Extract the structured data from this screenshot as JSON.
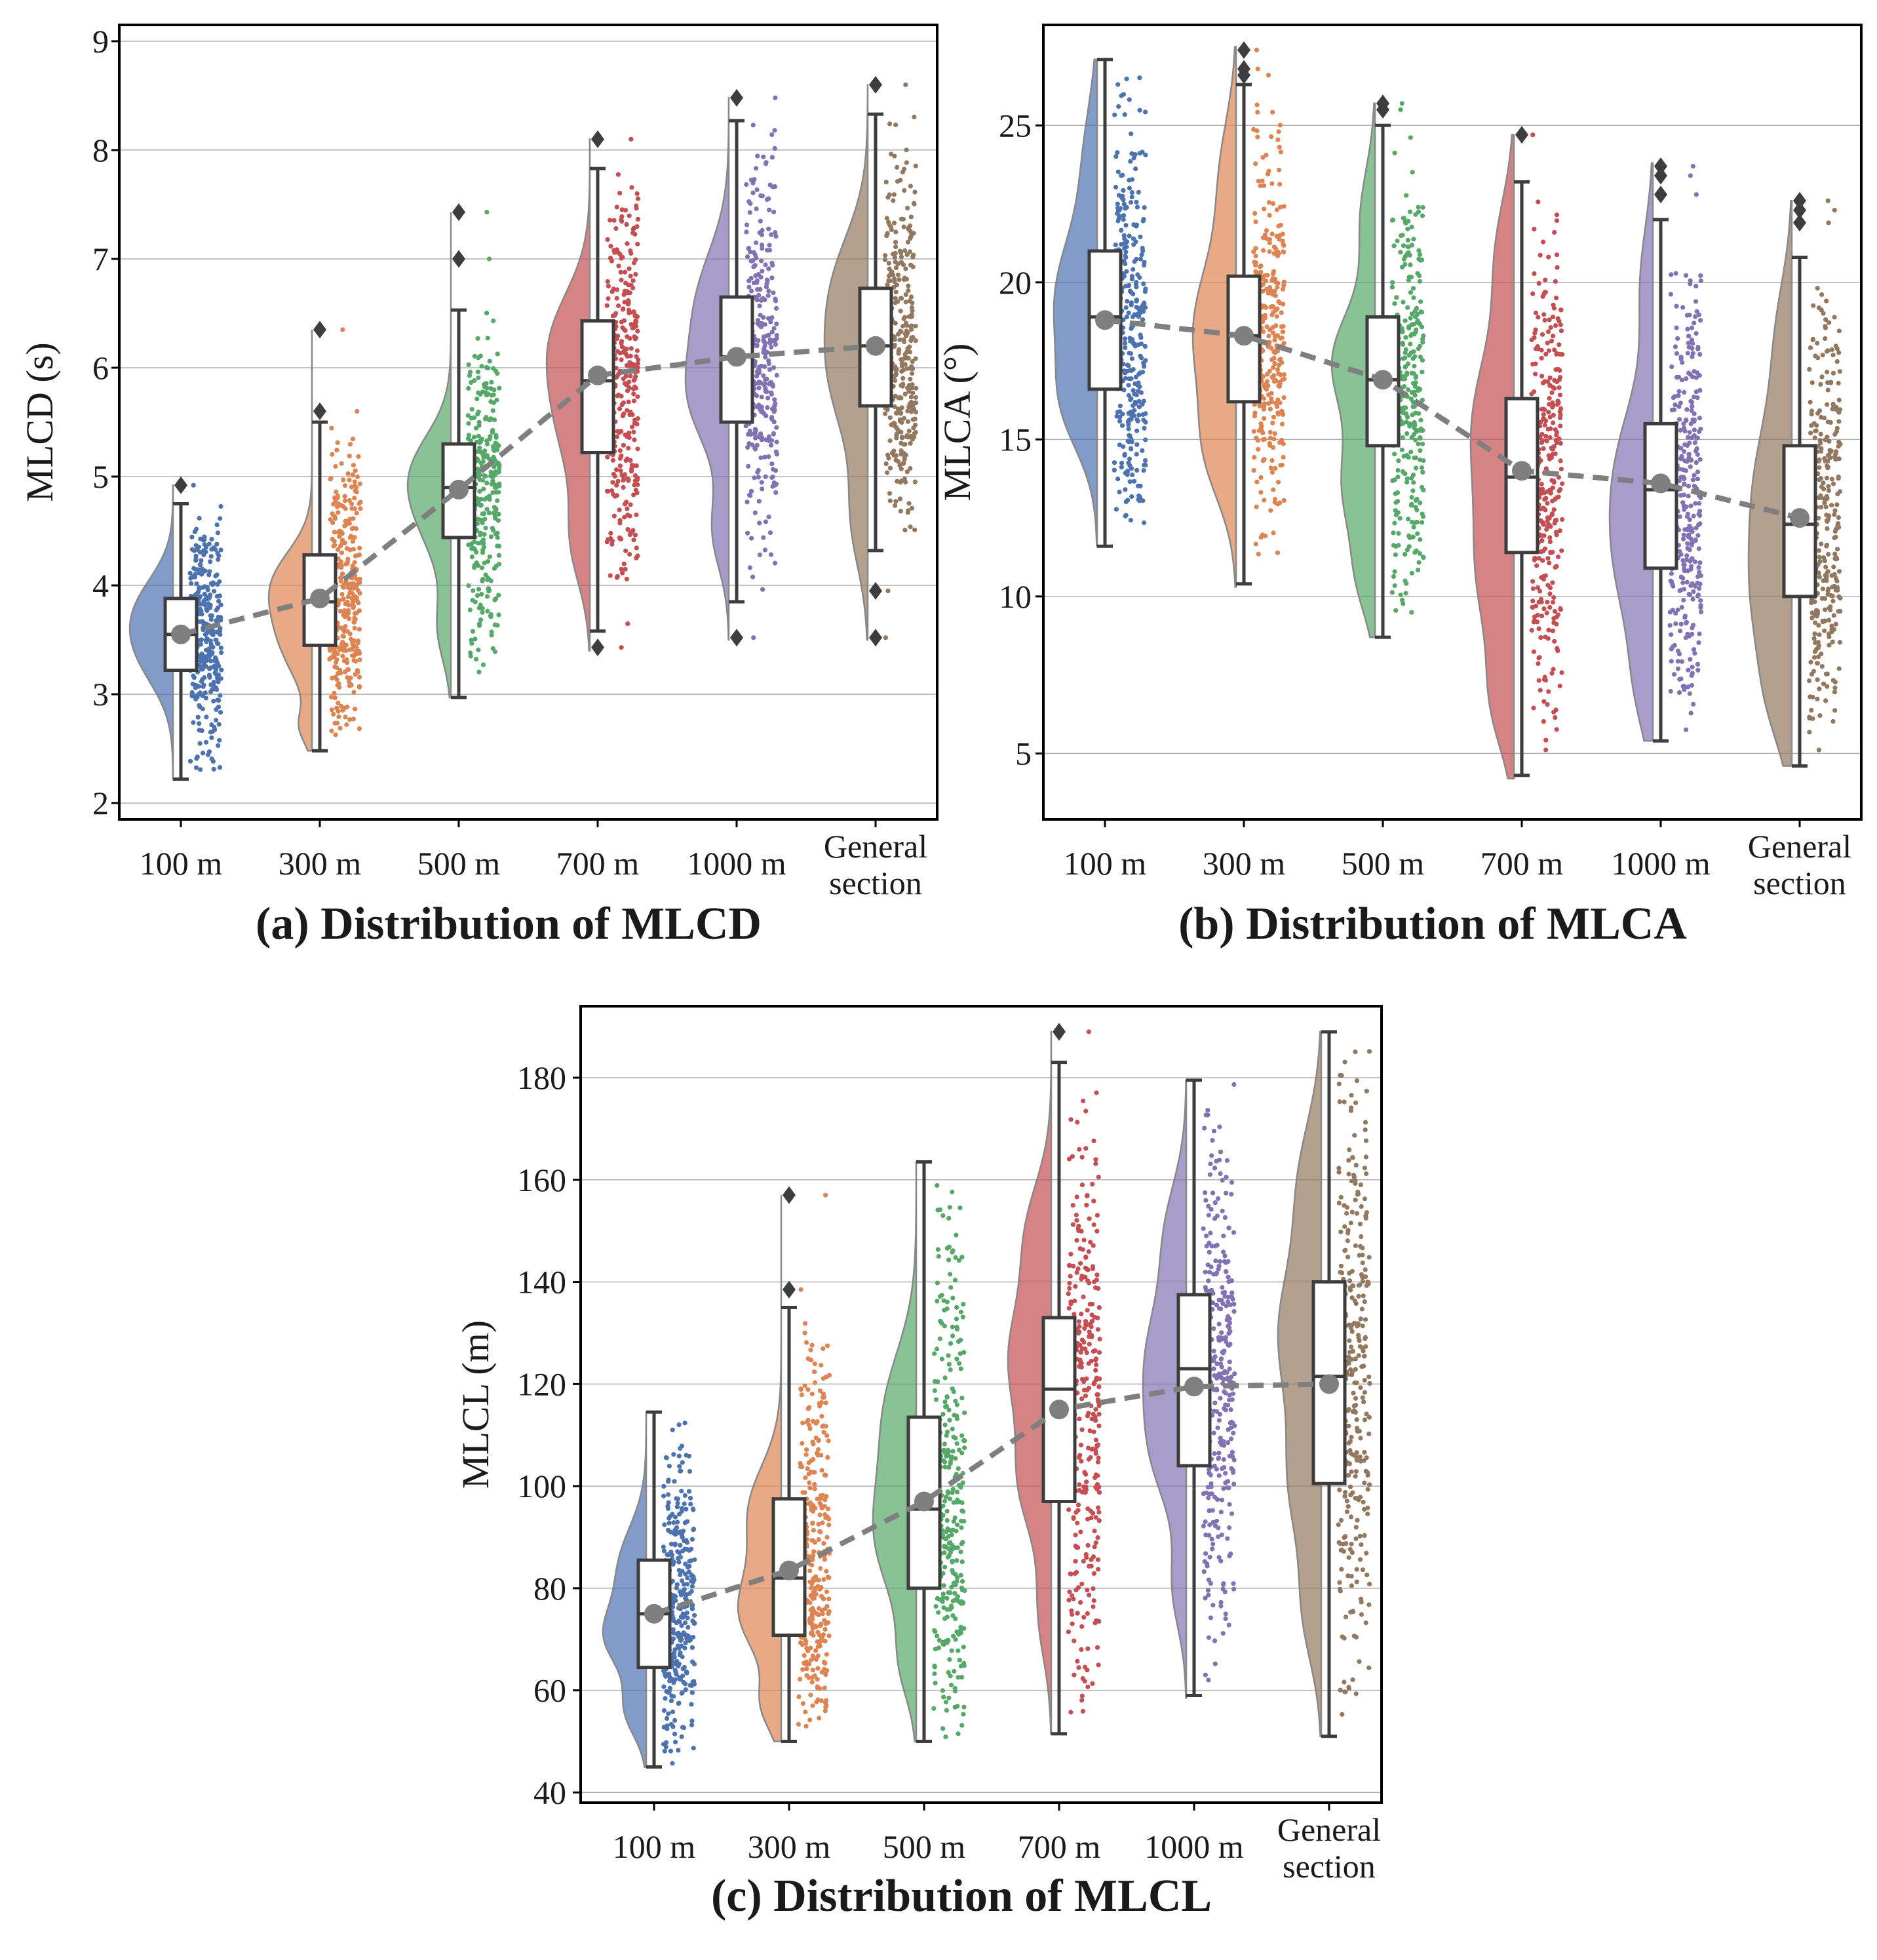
{
  "colors": {
    "palette": [
      "#4c72b0",
      "#dd8452",
      "#55a868",
      "#c44e52",
      "#8172b3",
      "#937860"
    ],
    "box_edge": "#3d3d3d",
    "mean_line": "#7f7f7f",
    "grid": "#b0b0b0"
  },
  "chart_data": [
    {
      "type": "raincloud",
      "caption": "(a) Distribution of MLCD",
      "ylabel": "MLCD (s)",
      "ylim": [
        1.85,
        9.15
      ],
      "yticks": [
        2,
        3,
        4,
        5,
        6,
        7,
        8,
        9
      ],
      "categories": [
        "100 m",
        "300 m",
        "500 m",
        "700 m",
        "1000 m",
        [
          "General",
          "section"
        ]
      ],
      "groups": [
        {
          "min": 2.22,
          "q1": 3.22,
          "median": 3.55,
          "q3": 3.88,
          "max": 4.75,
          "mean": 3.55,
          "outliers": [
            4.92
          ],
          "lo": 2.22,
          "hi": 4.92,
          "peaks": [
            [
              3.4,
              0.34,
              1.0
            ],
            [
              3.85,
              0.3,
              0.75
            ]
          ]
        },
        {
          "min": 2.48,
          "q1": 3.45,
          "median": 3.85,
          "q3": 4.28,
          "max": 5.5,
          "mean": 3.88,
          "outliers": [
            5.6,
            6.35
          ],
          "lo": 2.48,
          "hi": 6.35,
          "peaks": [
            [
              3.5,
              0.35,
              0.9
            ],
            [
              4.05,
              0.3,
              1.0
            ],
            [
              2.7,
              0.15,
              0.35
            ]
          ]
        },
        {
          "min": 2.97,
          "q1": 4.44,
          "median": 4.9,
          "q3": 5.3,
          "max": 6.53,
          "mean": 4.88,
          "outliers": [
            7.0,
            7.43
          ],
          "lo": 2.97,
          "hi": 7.43,
          "peaks": [
            [
              4.6,
              0.4,
              0.9
            ],
            [
              5.1,
              0.35,
              1.0
            ],
            [
              3.6,
              0.3,
              0.45
            ]
          ]
        },
        {
          "min": 3.58,
          "q1": 5.22,
          "median": 5.88,
          "q3": 6.43,
          "max": 7.83,
          "mean": 5.93,
          "outliers": [
            3.43,
            8.1
          ],
          "lo": 3.4,
          "hi": 8.1,
          "peaks": [
            [
              5.5,
              0.5,
              0.9
            ],
            [
              6.3,
              0.45,
              1.0
            ],
            [
              4.4,
              0.4,
              0.55
            ]
          ]
        },
        {
          "min": 3.85,
          "q1": 5.5,
          "median": 6.1,
          "q3": 6.65,
          "max": 8.27,
          "mean": 6.1,
          "outliers": [
            3.52,
            8.48
          ],
          "lo": 3.5,
          "hi": 8.48,
          "peaks": [
            [
              5.7,
              0.45,
              1.0
            ],
            [
              6.6,
              0.5,
              0.85
            ],
            [
              4.5,
              0.35,
              0.45
            ]
          ]
        },
        {
          "min": 4.32,
          "q1": 5.65,
          "median": 6.2,
          "q3": 6.73,
          "max": 8.33,
          "mean": 6.2,
          "outliers": [
            3.52,
            3.95,
            8.6
          ],
          "lo": 3.5,
          "hi": 8.6,
          "peaks": [
            [
              5.9,
              0.55,
              1.0
            ],
            [
              6.8,
              0.5,
              0.8
            ],
            [
              4.6,
              0.45,
              0.45
            ]
          ]
        }
      ]
    },
    {
      "type": "raincloud",
      "caption": "(b) Distribution of MLCA",
      "ylabel": "MLCA (°)",
      "ylim": [
        2.9,
        28.2
      ],
      "yticks": [
        5,
        10,
        15,
        20,
        25
      ],
      "categories": [
        "100 m",
        "300 m",
        "500 m",
        "700 m",
        "1000 m",
        [
          "General",
          "section"
        ]
      ],
      "groups": [
        {
          "min": 11.6,
          "q1": 16.6,
          "median": 18.9,
          "q3": 21.0,
          "max": 27.1,
          "mean": 18.8,
          "outliers": [],
          "lo": 11.6,
          "hi": 27.1,
          "peaks": [
            [
              19.5,
              2.0,
              1.0
            ],
            [
              16.0,
              1.5,
              0.7
            ],
            [
              24.0,
              1.8,
              0.3
            ]
          ]
        },
        {
          "min": 10.4,
          "q1": 16.2,
          "median": 18.3,
          "q3": 20.2,
          "max": 26.3,
          "mean": 18.3,
          "outliers": [
            26.6,
            26.8,
            27.4
          ],
          "lo": 10.3,
          "hi": 27.5,
          "peaks": [
            [
              18.5,
              2.2,
              1.0
            ],
            [
              14.5,
              1.6,
              0.6
            ],
            [
              23.5,
              1.8,
              0.35
            ]
          ]
        },
        {
          "min": 8.7,
          "q1": 14.8,
          "median": 16.9,
          "q3": 18.9,
          "max": 25.0,
          "mean": 16.9,
          "outliers": [
            25.5,
            25.7
          ],
          "lo": 8.7,
          "hi": 25.7,
          "peaks": [
            [
              17.5,
              1.6,
              1.0
            ],
            [
              13.5,
              1.6,
              0.75
            ],
            [
              10.5,
              1.2,
              0.35
            ],
            [
              22.0,
              1.6,
              0.35
            ]
          ]
        },
        {
          "min": 4.3,
          "q1": 11.4,
          "median": 13.8,
          "q3": 16.3,
          "max": 23.2,
          "mean": 14.0,
          "outliers": [
            24.7
          ],
          "lo": 4.2,
          "hi": 24.7,
          "peaks": [
            [
              15.5,
              2.5,
              1.0
            ],
            [
              10.5,
              2.2,
              0.8
            ],
            [
              6.5,
              1.5,
              0.45
            ],
            [
              21.0,
              1.8,
              0.4
            ]
          ]
        },
        {
          "min": 5.4,
          "q1": 10.9,
          "median": 13.4,
          "q3": 15.5,
          "max": 22.0,
          "mean": 13.6,
          "outliers": [
            22.8,
            23.4,
            23.7
          ],
          "lo": 5.4,
          "hi": 23.8,
          "peaks": [
            [
              14.0,
              2.3,
              1.0
            ],
            [
              10.5,
              2.0,
              0.75
            ],
            [
              7.0,
              1.5,
              0.4
            ],
            [
              20.0,
              1.8,
              0.35
            ]
          ]
        },
        {
          "min": 4.6,
          "q1": 10.0,
          "median": 12.3,
          "q3": 14.8,
          "max": 20.8,
          "mean": 12.5,
          "outliers": [
            21.9,
            22.3,
            22.6
          ],
          "lo": 4.6,
          "hi": 22.6,
          "peaks": [
            [
              13.5,
              2.5,
              1.0
            ],
            [
              9.5,
              2.0,
              0.8
            ],
            [
              6.5,
              1.5,
              0.45
            ],
            [
              18.5,
              1.8,
              0.35
            ]
          ]
        }
      ]
    },
    {
      "type": "raincloud",
      "caption": "(c) Distribution of MLCL",
      "ylabel": "MLCL (m)",
      "ylim": [
        38,
        194
      ],
      "yticks": [
        40,
        60,
        80,
        100,
        120,
        140,
        160,
        180
      ],
      "categories": [
        "100 m",
        "300 m",
        "500 m",
        "700 m",
        "1000 m",
        [
          "General",
          "section"
        ]
      ],
      "groups": [
        {
          "min": 45,
          "q1": 64.5,
          "median": 75,
          "q3": 85.5,
          "max": 114.5,
          "mean": 75,
          "outliers": [],
          "lo": 45,
          "hi": 114.5,
          "peaks": [
            [
              70,
              6,
              1.0
            ],
            [
              84,
              8,
              0.75
            ],
            [
              56,
              5,
              0.55
            ]
          ]
        },
        {
          "min": 50,
          "q1": 70.8,
          "median": 82,
          "q3": 97.5,
          "max": 135,
          "mean": 83.5,
          "outliers": [
            138.5,
            157
          ],
          "lo": 50,
          "hi": 157,
          "peaks": [
            [
              75,
              8,
              1.0
            ],
            [
              95,
              9,
              0.8
            ],
            [
              57,
              5,
              0.45
            ]
          ]
        },
        {
          "min": 50,
          "q1": 80,
          "median": 95.5,
          "q3": 113.5,
          "max": 163.5,
          "mean": 97,
          "outliers": [],
          "lo": 50,
          "hi": 163.5,
          "peaks": [
            [
              90,
              12,
              1.0
            ],
            [
              115,
              12,
              0.75
            ],
            [
              65,
              7,
              0.35
            ]
          ]
        },
        {
          "min": 51.5,
          "q1": 97,
          "median": 119,
          "q3": 133,
          "max": 183,
          "mean": 115,
          "outliers": [
            189
          ],
          "lo": 51.5,
          "hi": 189,
          "peaks": [
            [
              125,
              12,
              1.0
            ],
            [
              100,
              10,
              0.7
            ],
            [
              150,
              10,
              0.55
            ],
            [
              75,
              9,
              0.3
            ]
          ]
        },
        {
          "min": 59,
          "q1": 104,
          "median": 123,
          "q3": 137.5,
          "max": 179.5,
          "mean": 119.5,
          "outliers": [],
          "lo": 58.5,
          "hi": 179.5,
          "peaks": [
            [
              125,
              12,
              1.0
            ],
            [
              105,
              10,
              0.7
            ],
            [
              150,
              10,
              0.5
            ],
            [
              80,
              8,
              0.35
            ]
          ]
        },
        {
          "min": 51,
          "q1": 100.5,
          "median": 121.5,
          "q3": 140,
          "max": 189,
          "mean": 120,
          "outliers": [],
          "lo": 51,
          "hi": 189,
          "peaks": [
            [
              130,
              14,
              1.0
            ],
            [
              100,
              12,
              0.7
            ],
            [
              160,
              12,
              0.5
            ],
            [
              75,
              10,
              0.4
            ]
          ]
        }
      ]
    }
  ]
}
